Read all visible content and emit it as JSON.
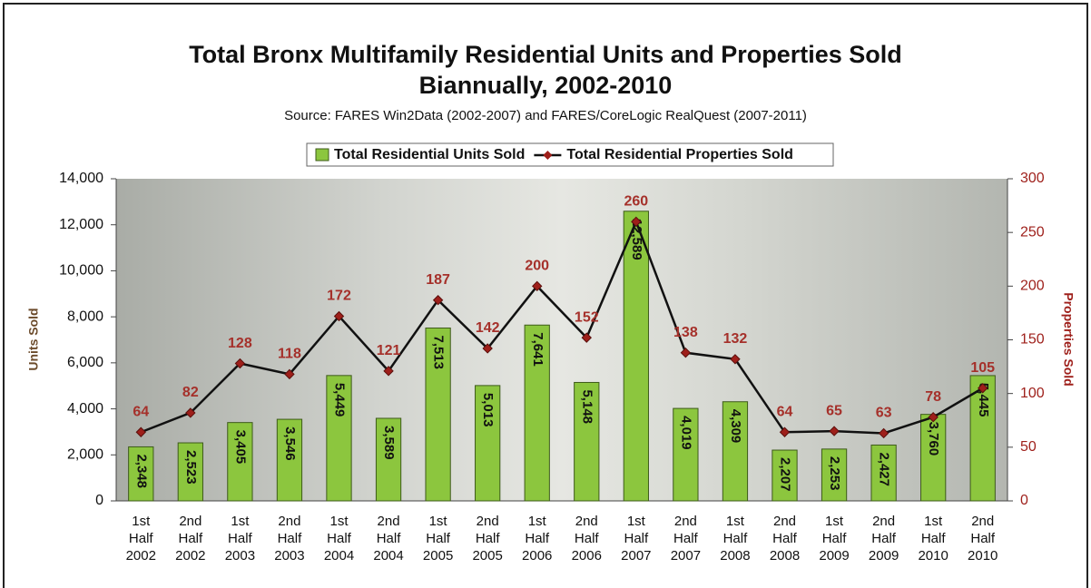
{
  "chart_data": {
    "type": "bar",
    "title": "Total Bronx Multifamily Residential Units and Properties Sold",
    "subtitle": "Biannually, 2002-2010",
    "source": "Source: FARES Win2Data (2002-2007) and FARES/CoreLogic RealQuest (2007-2011)",
    "y_label": "Units Sold",
    "y2_label": "Properties Sold",
    "categories": [
      "1st Half 2002",
      "2nd Half 2002",
      "1st Half 2003",
      "2nd Half 2003",
      "1st Half 2004",
      "2nd Half 2004",
      "1st Half 2005",
      "2nd Half 2005",
      "1st Half 2006",
      "2nd Half 2006",
      "1st Half 2007",
      "2nd Half 2007",
      "1st Half 2008",
      "2nd Half 2008",
      "1st Half 2009",
      "2nd Half 2009",
      "1st Half 2010",
      "2nd Half 2010"
    ],
    "series": [
      {
        "name": "Total Residential Units Sold",
        "type": "bar",
        "color": "#8cc63e",
        "values": [
          2348,
          2523,
          3405,
          3546,
          5449,
          3589,
          7513,
          5013,
          7641,
          5148,
          12589,
          4019,
          4309,
          2207,
          2253,
          2427,
          3760,
          5445
        ],
        "value_labels": [
          "2,348",
          "2,523",
          "3,405",
          "3,546",
          "5,449",
          "3,589",
          "7,513",
          "5,013",
          "7,641",
          "5,148",
          "12,589",
          "4,019",
          "4,309",
          "2,207",
          "2,253",
          "2,427",
          "3,760",
          "5,445"
        ]
      },
      {
        "name": "Total Residential Properties Sold",
        "type": "line",
        "axis": "y2",
        "color": "#9e1f1a",
        "values": [
          64,
          82,
          128,
          118,
          172,
          121,
          187,
          142,
          200,
          152,
          260,
          138,
          132,
          64,
          65,
          63,
          78,
          105
        ]
      }
    ],
    "ylim": [
      0,
      14000
    ],
    "yticks": [
      0,
      {
        "value": 2000,
        "label": "2,000"
      },
      {
        "value": 4000,
        "label": "4,000"
      },
      {
        "value": 6000,
        "label": "6,000"
      },
      {
        "value": 8000,
        "label": "8,000"
      },
      {
        "value": 10000,
        "label": "10,000"
      },
      {
        "value": 12000,
        "label": "12,000"
      },
      {
        "value": 14000,
        "label": "14,000"
      }
    ],
    "y2lim": [
      0,
      300
    ],
    "y2ticks": [
      0,
      50,
      100,
      150,
      200,
      250,
      300
    ]
  }
}
